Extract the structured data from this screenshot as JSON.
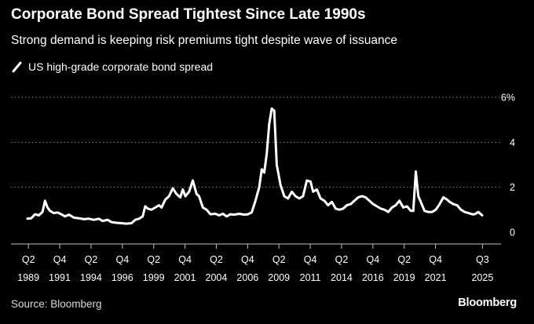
{
  "chart_data": {
    "type": "line",
    "title": "Corporate Bond Spread Tightest Since Late 1990s",
    "subtitle": "Strong demand is keeping risk premiums tight despite wave of issuance",
    "legend": [
      {
        "label": "US high-grade corporate bond spread",
        "color": "#ffffff"
      }
    ],
    "xlabel": "",
    "ylabel": "",
    "ylim": [
      0,
      6
    ],
    "yticks": [
      {
        "value": 0,
        "label": "0"
      },
      {
        "value": 2,
        "label": "2"
      },
      {
        "value": 4,
        "label": "4"
      },
      {
        "value": 6,
        "label": "6%"
      }
    ],
    "xticks": [
      {
        "value": 1989.375,
        "quarter": "Q2",
        "year": "1989"
      },
      {
        "value": 1991.875,
        "quarter": "Q4",
        "year": "1991"
      },
      {
        "value": 1994.375,
        "quarter": "Q2",
        "year": "1994"
      },
      {
        "value": 1996.875,
        "quarter": "Q4",
        "year": "1996"
      },
      {
        "value": 1999.375,
        "quarter": "Q2",
        "year": "1999"
      },
      {
        "value": 2001.875,
        "quarter": "Q4",
        "year": "2001"
      },
      {
        "value": 2004.375,
        "quarter": "Q2",
        "year": "2004"
      },
      {
        "value": 2006.875,
        "quarter": "Q4",
        "year": "2006"
      },
      {
        "value": 2009.375,
        "quarter": "Q2",
        "year": "2009"
      },
      {
        "value": 2011.875,
        "quarter": "Q4",
        "year": "2011"
      },
      {
        "value": 2014.375,
        "quarter": "Q2",
        "year": "2014"
      },
      {
        "value": 2016.875,
        "quarter": "Q4",
        "year": "2016"
      },
      {
        "value": 2019.375,
        "quarter": "Q2",
        "year": "2019"
      },
      {
        "value": 2021.875,
        "quarter": "Q4",
        "year": "2021"
      },
      {
        "value": 2025.625,
        "quarter": "Q3",
        "year": "2025"
      }
    ],
    "xlim": [
      1989.3,
      2025.6
    ],
    "series": [
      {
        "name": "US high-grade corporate bond spread",
        "points": [
          [
            1989.3,
            0.6
          ],
          [
            1989.6,
            0.62
          ],
          [
            1989.9,
            0.8
          ],
          [
            1990.2,
            0.75
          ],
          [
            1990.5,
            0.9
          ],
          [
            1990.7,
            1.4
          ],
          [
            1990.9,
            1.1
          ],
          [
            1991.1,
            0.95
          ],
          [
            1991.4,
            0.85
          ],
          [
            1991.7,
            0.88
          ],
          [
            1992.0,
            0.8
          ],
          [
            1992.3,
            0.7
          ],
          [
            1992.6,
            0.78
          ],
          [
            1993.0,
            0.65
          ],
          [
            1993.4,
            0.62
          ],
          [
            1993.8,
            0.58
          ],
          [
            1994.2,
            0.6
          ],
          [
            1994.6,
            0.55
          ],
          [
            1995.0,
            0.6
          ],
          [
            1995.3,
            0.5
          ],
          [
            1995.7,
            0.55
          ],
          [
            1996.0,
            0.45
          ],
          [
            1996.4,
            0.42
          ],
          [
            1996.8,
            0.4
          ],
          [
            1997.2,
            0.38
          ],
          [
            1997.6,
            0.4
          ],
          [
            1997.9,
            0.55
          ],
          [
            1998.2,
            0.6
          ],
          [
            1998.5,
            0.7
          ],
          [
            1998.7,
            1.15
          ],
          [
            1998.9,
            1.05
          ],
          [
            1999.2,
            1.0
          ],
          [
            1999.5,
            1.1
          ],
          [
            1999.8,
            1.2
          ],
          [
            2000.0,
            1.1
          ],
          [
            2000.3,
            1.45
          ],
          [
            2000.6,
            1.6
          ],
          [
            2000.9,
            1.95
          ],
          [
            2001.2,
            1.7
          ],
          [
            2001.5,
            1.55
          ],
          [
            2001.7,
            1.9
          ],
          [
            2001.9,
            1.6
          ],
          [
            2002.2,
            1.8
          ],
          [
            2002.5,
            2.3
          ],
          [
            2002.8,
            1.7
          ],
          [
            2003.0,
            1.6
          ],
          [
            2003.3,
            1.1
          ],
          [
            2003.6,
            1.0
          ],
          [
            2003.9,
            0.8
          ],
          [
            2004.3,
            0.82
          ],
          [
            2004.6,
            0.75
          ],
          [
            2004.9,
            0.82
          ],
          [
            2005.2,
            0.7
          ],
          [
            2005.5,
            0.8
          ],
          [
            2005.8,
            0.78
          ],
          [
            2006.2,
            0.82
          ],
          [
            2006.6,
            0.78
          ],
          [
            2006.9,
            0.8
          ],
          [
            2007.2,
            0.88
          ],
          [
            2007.5,
            1.4
          ],
          [
            2007.8,
            2.0
          ],
          [
            2008.0,
            2.8
          ],
          [
            2008.2,
            2.65
          ],
          [
            2008.4,
            3.5
          ],
          [
            2008.6,
            4.8
          ],
          [
            2008.8,
            5.5
          ],
          [
            2009.0,
            5.4
          ],
          [
            2009.2,
            3.0
          ],
          [
            2009.5,
            2.1
          ],
          [
            2009.8,
            1.6
          ],
          [
            2010.1,
            1.5
          ],
          [
            2010.4,
            1.8
          ],
          [
            2010.7,
            1.6
          ],
          [
            2011.0,
            1.5
          ],
          [
            2011.3,
            1.6
          ],
          [
            2011.6,
            2.3
          ],
          [
            2011.9,
            2.25
          ],
          [
            2012.1,
            1.8
          ],
          [
            2012.4,
            1.9
          ],
          [
            2012.7,
            1.5
          ],
          [
            2013.0,
            1.4
          ],
          [
            2013.3,
            1.2
          ],
          [
            2013.6,
            1.35
          ],
          [
            2013.9,
            1.05
          ],
          [
            2014.2,
            1.0
          ],
          [
            2014.5,
            1.05
          ],
          [
            2014.8,
            1.2
          ],
          [
            2015.1,
            1.25
          ],
          [
            2015.4,
            1.4
          ],
          [
            2015.7,
            1.55
          ],
          [
            2016.0,
            1.6
          ],
          [
            2016.3,
            1.55
          ],
          [
            2016.6,
            1.4
          ],
          [
            2016.9,
            1.25
          ],
          [
            2017.2,
            1.15
          ],
          [
            2017.5,
            1.05
          ],
          [
            2017.8,
            1.0
          ],
          [
            2018.1,
            0.9
          ],
          [
            2018.4,
            1.1
          ],
          [
            2018.7,
            1.2
          ],
          [
            2019.0,
            1.4
          ],
          [
            2019.3,
            1.1
          ],
          [
            2019.6,
            1.15
          ],
          [
            2019.9,
            0.95
          ],
          [
            2020.1,
            0.95
          ],
          [
            2020.3,
            2.7
          ],
          [
            2020.5,
            1.6
          ],
          [
            2020.7,
            1.35
          ],
          [
            2021.0,
            0.95
          ],
          [
            2021.3,
            0.9
          ],
          [
            2021.6,
            0.9
          ],
          [
            2021.9,
            1.0
          ],
          [
            2022.2,
            1.25
          ],
          [
            2022.5,
            1.55
          ],
          [
            2022.8,
            1.45
          ],
          [
            2023.0,
            1.35
          ],
          [
            2023.3,
            1.25
          ],
          [
            2023.6,
            1.2
          ],
          [
            2023.9,
            1.0
          ],
          [
            2024.2,
            0.9
          ],
          [
            2024.5,
            0.85
          ],
          [
            2024.8,
            0.8
          ],
          [
            2025.0,
            0.8
          ],
          [
            2025.3,
            0.9
          ],
          [
            2025.6,
            0.75
          ]
        ]
      }
    ]
  },
  "footer": {
    "source": "Source: Bloomberg",
    "brand": "Bloomberg"
  }
}
